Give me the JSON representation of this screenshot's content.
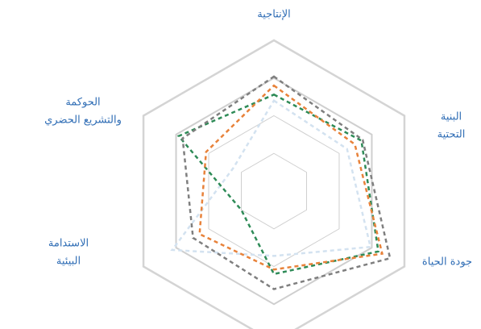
{
  "chart_data": {
    "type": "radar",
    "categories": [
      [
        "الإنتاجية"
      ],
      [
        "البنية",
        "التحتية"
      ],
      [
        "جودة الحياة"
      ],
      null,
      [
        "الاستدامة",
        "البيئية"
      ],
      [
        "الحوكمة",
        "والتشريع الحضري"
      ]
    ],
    "rlim": [
      0,
      100
    ],
    "rticks": [
      25,
      50,
      75,
      100
    ],
    "grid": true,
    "series": [
      {
        "color": "#7f7f7f",
        "values": [
          76,
          68,
          89,
          65,
          62,
          70
        ]
      },
      {
        "color": "#e8823a",
        "values": [
          70,
          62,
          83,
          52,
          57,
          52
        ]
      },
      {
        "color": "#2e8b57",
        "values": [
          64,
          67,
          80,
          55,
          25,
          73
        ]
      },
      {
        "color": "#d3e2f0",
        "values": [
          60,
          56,
          74,
          43,
          78,
          31
        ]
      }
    ]
  }
}
